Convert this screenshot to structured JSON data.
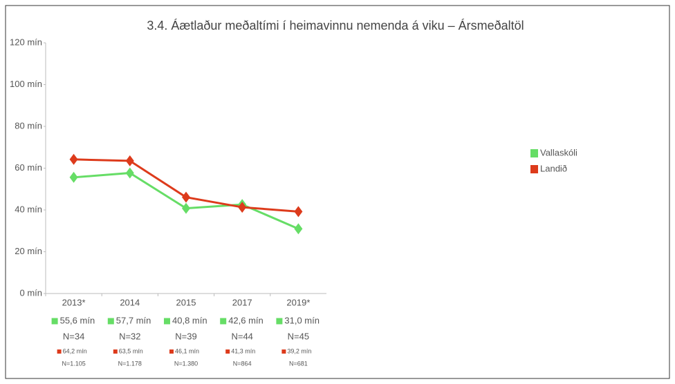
{
  "chart_data": {
    "type": "line",
    "title": "3.4. Áætlaður meðaltími í heimavinnu nemenda á viku – Ársmeðaltöl",
    "categories": [
      "2013*",
      "2014",
      "2015",
      "2017",
      "2019*"
    ],
    "series": [
      {
        "name": "Vallaskóli",
        "color": "#66dd66",
        "values": [
          55.6,
          57.7,
          40.8,
          42.6,
          31.0
        ],
        "value_labels": [
          "55,6 mín",
          "57,7 mín",
          "40,8 mín",
          "42,6 mín",
          "31,0 mín"
        ],
        "n_labels": [
          "N=34",
          "N=32",
          "N=39",
          "N=44",
          "N=45"
        ]
      },
      {
        "name": "Landið",
        "color": "#dd3b1c",
        "values": [
          64.2,
          63.5,
          46.1,
          41.3,
          39.2
        ],
        "value_labels": [
          "64,2 mín",
          "63,5 mín",
          "46,1 mín",
          "41,3 mín",
          "39,2 mín"
        ],
        "n_labels": [
          "N=1.105",
          "N=1.178",
          "N=1.380",
          "N=864",
          "N=681"
        ]
      }
    ],
    "ylim": [
      0,
      120
    ],
    "yticks": [
      {
        "value": 0,
        "label": "0 mín"
      },
      {
        "value": 20,
        "label": "20 mín"
      },
      {
        "value": 40,
        "label": "40 mín"
      },
      {
        "value": 60,
        "label": "60 mín"
      },
      {
        "value": 80,
        "label": "80 mín"
      },
      {
        "value": 100,
        "label": "100 mín"
      },
      {
        "value": 120,
        "label": "120 mín"
      }
    ],
    "legend": "right"
  }
}
